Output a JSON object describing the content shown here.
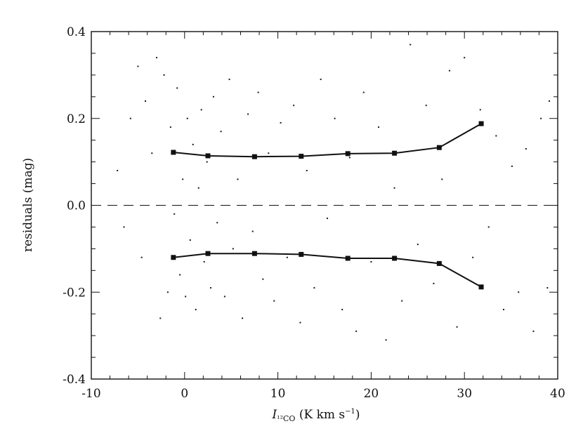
{
  "chart_data": {
    "type": "scatter",
    "title": "",
    "xlabel": {
      "main": "I",
      "subscript": "¹²CO",
      "unit": " (K km s",
      "unit_sup": "−1",
      "unit_close": ")"
    },
    "ylabel": "residuals (mag)",
    "xlim": [
      -10,
      40
    ],
    "ylim": [
      -0.4,
      0.4
    ],
    "xticks": [
      -10,
      0,
      10,
      20,
      30,
      40
    ],
    "xtick_labels": [
      "-10",
      "0",
      "10",
      "20",
      "30",
      "40"
    ],
    "yticks": [
      -0.4,
      -0.2,
      0.0,
      0.2,
      0.4
    ],
    "ytick_labels": [
      "-0.4",
      "-0.2",
      "0.0",
      "0.2",
      "0.4"
    ],
    "grid": false,
    "legend": "none",
    "reference_line": {
      "y": 0.0,
      "style": "dashed"
    },
    "series": [
      {
        "type": "line",
        "values": [
          [
            -1.2,
            0.122
          ],
          [
            2.5,
            0.114
          ],
          [
            7.5,
            0.112
          ],
          [
            12.5,
            0.113
          ],
          [
            17.5,
            0.119
          ],
          [
            22.5,
            0.12
          ],
          [
            27.3,
            0.133
          ],
          [
            31.8,
            0.188
          ]
        ]
      },
      {
        "type": "line",
        "values": [
          [
            -1.2,
            -0.12
          ],
          [
            2.5,
            -0.111
          ],
          [
            7.5,
            -0.111
          ],
          [
            12.5,
            -0.113
          ],
          [
            17.5,
            -0.122
          ],
          [
            22.5,
            -0.122
          ],
          [
            27.3,
            -0.134
          ],
          [
            31.8,
            -0.188
          ]
        ]
      }
    ],
    "scatter_points_estimated": [
      [
        -7.2,
        0.08
      ],
      [
        -6.5,
        -0.05
      ],
      [
        -5.8,
        0.2
      ],
      [
        -5.0,
        0.32
      ],
      [
        -4.6,
        -0.12
      ],
      [
        -4.2,
        0.24
      ],
      [
        -3.5,
        0.12
      ],
      [
        -3.0,
        0.34
      ],
      [
        -2.6,
        -0.26
      ],
      [
        -2.2,
        0.3
      ],
      [
        -1.8,
        -0.2
      ],
      [
        -1.5,
        0.18
      ],
      [
        -1.1,
        -0.02
      ],
      [
        -0.8,
        0.27
      ],
      [
        -0.5,
        -0.16
      ],
      [
        -0.2,
        0.06
      ],
      [
        0.1,
        -0.21
      ],
      [
        0.3,
        0.2
      ],
      [
        0.6,
        -0.08
      ],
      [
        0.9,
        0.14
      ],
      [
        1.2,
        -0.24
      ],
      [
        1.5,
        0.04
      ],
      [
        1.8,
        0.22
      ],
      [
        2.1,
        -0.13
      ],
      [
        2.4,
        0.1
      ],
      [
        2.8,
        -0.19
      ],
      [
        3.1,
        0.25
      ],
      [
        3.5,
        -0.04
      ],
      [
        3.9,
        0.17
      ],
      [
        4.3,
        -0.21
      ],
      [
        4.8,
        0.29
      ],
      [
        5.2,
        -0.1
      ],
      [
        5.7,
        0.06
      ],
      [
        6.2,
        -0.26
      ],
      [
        6.8,
        0.21
      ],
      [
        7.3,
        -0.06
      ],
      [
        7.9,
        0.26
      ],
      [
        8.4,
        -0.17
      ],
      [
        9.0,
        0.12
      ],
      [
        9.6,
        -0.22
      ],
      [
        10.3,
        0.19
      ],
      [
        11.0,
        -0.12
      ],
      [
        11.7,
        0.23
      ],
      [
        12.4,
        -0.27
      ],
      [
        13.1,
        0.08
      ],
      [
        13.9,
        -0.19
      ],
      [
        14.6,
        0.29
      ],
      [
        15.3,
        -0.03
      ],
      [
        16.1,
        0.2
      ],
      [
        16.9,
        -0.24
      ],
      [
        17.7,
        0.11
      ],
      [
        18.4,
        -0.29
      ],
      [
        19.2,
        0.26
      ],
      [
        20.0,
        -0.13
      ],
      [
        20.8,
        0.18
      ],
      [
        21.6,
        -0.31
      ],
      [
        22.5,
        0.04
      ],
      [
        23.3,
        -0.22
      ],
      [
        24.2,
        0.37
      ],
      [
        25.0,
        -0.09
      ],
      [
        25.9,
        0.23
      ],
      [
        26.7,
        -0.18
      ],
      [
        27.6,
        0.06
      ],
      [
        28.4,
        0.31
      ],
      [
        29.2,
        -0.28
      ],
      [
        30.0,
        0.34
      ],
      [
        30.9,
        -0.12
      ],
      [
        31.7,
        0.22
      ],
      [
        32.6,
        -0.05
      ],
      [
        33.4,
        0.16
      ],
      [
        34.2,
        -0.24
      ],
      [
        35.1,
        0.09
      ],
      [
        35.8,
        -0.2
      ],
      [
        36.6,
        0.13
      ],
      [
        37.4,
        -0.29
      ],
      [
        38.2,
        0.2
      ],
      [
        38.9,
        -0.19
      ],
      [
        39.1,
        0.24
      ]
    ],
    "colors": {
      "points": "#1a1a1a",
      "lines": "#111111",
      "axes": "#111111",
      "background": "#ffffff"
    }
  }
}
